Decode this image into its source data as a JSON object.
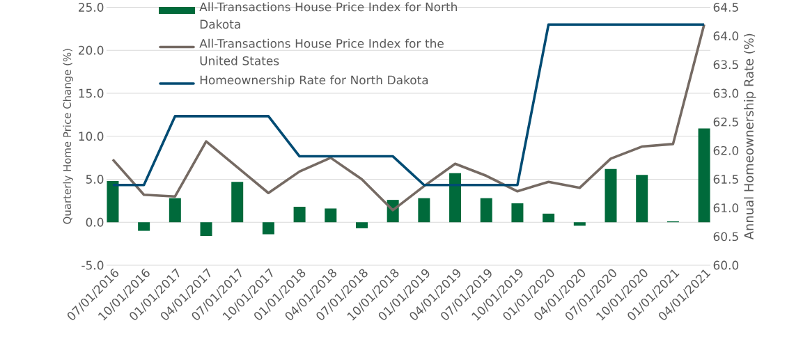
{
  "chart_data": {
    "type": "bar",
    "categories": [
      "07/01/2016",
      "10/01/2016",
      "01/01/2017",
      "04/01/2017",
      "07/01/2017",
      "10/01/2017",
      "01/01/2018",
      "04/01/2018",
      "07/01/2018",
      "10/01/2018",
      "01/01/2019",
      "04/01/2019",
      "07/01/2019",
      "10/01/2019",
      "01/01/2020",
      "04/01/2020",
      "07/01/2020",
      "10/01/2020",
      "01/01/2021",
      "04/01/2021"
    ],
    "ylabel": "Quarterly Home Price Change (%)",
    "y2label": "Annual Homeownership Rate (%)",
    "ylim": [
      -5,
      25
    ],
    "yticks": [
      {
        "value": -5,
        "label": "-5.0"
      },
      {
        "value": 0,
        "label": "0.0"
      },
      {
        "value": 5,
        "label": "5.0"
      },
      {
        "value": 10,
        "label": "10.0"
      },
      {
        "value": 15,
        "label": "15.0"
      },
      {
        "value": 20,
        "label": "20.0"
      },
      {
        "value": 25,
        "label": "25.0"
      }
    ],
    "y2lim": [
      60,
      64.5
    ],
    "y2ticks": [
      {
        "value": 60,
        "label": "60.0"
      },
      {
        "value": 60.5,
        "label": "60.5"
      },
      {
        "value": 61,
        "label": "61.0"
      },
      {
        "value": 61.5,
        "label": "61.5"
      },
      {
        "value": 62,
        "label": "62.0"
      },
      {
        "value": 62.5,
        "label": "62.5"
      },
      {
        "value": 63,
        "label": "63.0"
      },
      {
        "value": 63.5,
        "label": "63.5"
      },
      {
        "value": 64,
        "label": "64.0"
      },
      {
        "value": 64.5,
        "label": "64.5"
      }
    ],
    "grid": "y",
    "legend": "top left",
    "series": [
      {
        "name": "All-Transactions House Price Index for North Dakota",
        "color": "#006a3b",
        "values": [
          4.8,
          -1.0,
          2.8,
          -1.6,
          4.7,
          -1.4,
          1.8,
          1.6,
          -0.7,
          2.6,
          2.8,
          5.7,
          2.8,
          2.2,
          1.0,
          -0.4,
          6.2,
          5.5,
          0.1,
          10.9
        ]
      },
      {
        "name": "All-Transactions House Price Index for the United States",
        "type": "line",
        "color": "#756a63",
        "values": [
          7.3,
          3.2,
          3.0,
          9.4,
          6.4,
          3.4,
          5.9,
          7.5,
          5.0,
          1.4,
          4.2,
          6.8,
          5.4,
          3.6,
          4.7,
          4.0,
          7.4,
          8.8,
          9.1,
          23.0
        ]
      },
      {
        "name": "Homeownership Rate for North Dakota",
        "type": "line",
        "axis": "y2",
        "color": "#004b73",
        "values": [
          61.4,
          61.4,
          62.6,
          62.6,
          62.6,
          62.6,
          61.9,
          61.9,
          61.9,
          61.9,
          61.4,
          61.4,
          61.4,
          61.4,
          64.2,
          64.2,
          64.2,
          64.2,
          64.2,
          64.2
        ]
      }
    ]
  }
}
